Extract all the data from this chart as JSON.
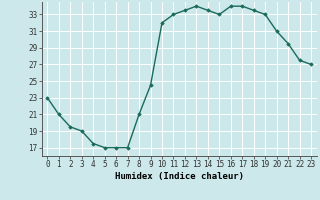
{
  "x": [
    0,
    1,
    2,
    3,
    4,
    5,
    6,
    7,
    8,
    9,
    10,
    11,
    12,
    13,
    14,
    15,
    16,
    17,
    18,
    19,
    20,
    21,
    22,
    23
  ],
  "y": [
    23,
    21,
    19.5,
    19,
    17.5,
    17,
    17,
    17,
    21,
    24.5,
    32,
    33,
    33.5,
    34,
    33.5,
    33,
    34,
    34,
    33.5,
    33,
    31,
    29.5,
    27.5,
    27
  ],
  "line_color": "#1a6b5a",
  "marker": "D",
  "marker_size": 1.8,
  "bg_color": "#cce8ea",
  "grid_color": "#ffffff",
  "xlabel": "Humidex (Indice chaleur)",
  "xlim": [
    -0.5,
    23.5
  ],
  "ylim": [
    16.0,
    34.5
  ],
  "yticks": [
    17,
    19,
    21,
    23,
    25,
    27,
    29,
    31,
    33
  ],
  "xticks": [
    0,
    1,
    2,
    3,
    4,
    5,
    6,
    7,
    8,
    9,
    10,
    11,
    12,
    13,
    14,
    15,
    16,
    17,
    18,
    19,
    20,
    21,
    22,
    23
  ],
  "tick_fontsize": 5.5,
  "xlabel_fontsize": 6.5,
  "linewidth": 1.0
}
